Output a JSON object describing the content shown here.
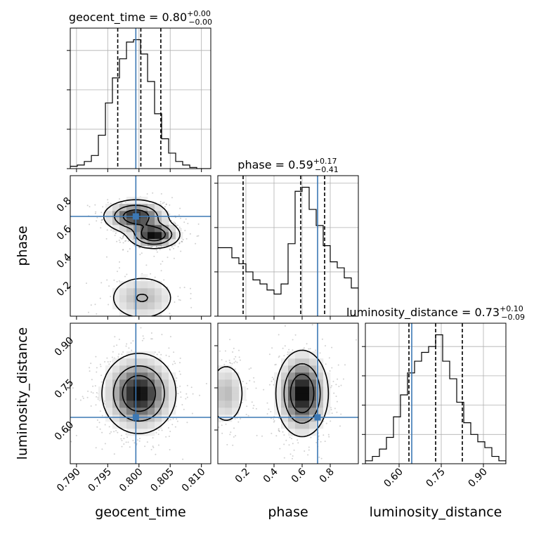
{
  "chart_data": {
    "type": "corner",
    "parameters": [
      "geocent_time",
      "phase",
      "luminosity_distance"
    ],
    "truth": {
      "geocent_time": 0.7995,
      "phase": 0.71,
      "luminosity_distance": 0.645
    },
    "truth_color": "#3c78b4",
    "grid": true,
    "marginals": [
      {
        "param": "geocent_time",
        "title_name": "geocent_time",
        "title_eq": " = ",
        "title_value": "0.80",
        "title_plus": "+0.00",
        "title_minus": "−0.00",
        "quantiles": [
          0.7966,
          0.8003,
          0.8035
        ],
        "xlim": [
          0.789,
          0.8115
        ],
        "bin_edges": [
          0.789,
          0.79013,
          0.79125,
          0.79238,
          0.7935,
          0.79463,
          0.79575,
          0.79688,
          0.798,
          0.79913,
          0.80025,
          0.80138,
          0.8025,
          0.80363,
          0.80475,
          0.80588,
          0.807,
          0.80813,
          0.80925,
          0.81038,
          0.8115
        ],
        "counts": [
          2,
          3,
          6,
          11,
          28,
          55,
          76,
          92,
          106,
          108,
          96,
          73,
          46,
          25,
          13,
          6,
          3,
          1,
          0,
          0
        ],
        "yticks": [
          0,
          33,
          66,
          99
        ]
      },
      {
        "param": "phase",
        "title_name": "phase",
        "title_eq": " = ",
        "title_value": "0.59",
        "title_plus": "+0.17",
        "title_minus": "−0.41",
        "quantiles": [
          0.18,
          0.59,
          0.76
        ],
        "xlim": [
          0.0,
          1.0
        ],
        "bin_edges": [
          0.0,
          0.05,
          0.1,
          0.15,
          0.2,
          0.25,
          0.3,
          0.35,
          0.4,
          0.45,
          0.5,
          0.55,
          0.6,
          0.65,
          0.7,
          0.75,
          0.8,
          0.85,
          0.9,
          0.95,
          1.0
        ],
        "counts": [
          34,
          34,
          29,
          26,
          22,
          18,
          16,
          13,
          11,
          16,
          36,
          62,
          64,
          53,
          45,
          35,
          27,
          24,
          19,
          14
        ],
        "yticks": [
          0,
          22,
          44,
          66
        ]
      },
      {
        "param": "luminosity_distance",
        "title_name": "luminosity_distance",
        "title_eq": " = ",
        "title_value": "0.73",
        "title_plus": "+0.10",
        "title_minus": "−0.09",
        "quantiles": [
          0.635,
          0.73,
          0.825
        ],
        "xlim": [
          0.48,
          0.98
        ],
        "bin_edges": [
          0.48,
          0.505,
          0.53,
          0.555,
          0.58,
          0.605,
          0.63,
          0.655,
          0.68,
          0.705,
          0.73,
          0.755,
          0.78,
          0.805,
          0.83,
          0.855,
          0.88,
          0.905,
          0.93,
          0.955,
          0.98
        ],
        "counts": [
          2,
          5,
          10,
          18,
          32,
          47,
          62,
          70,
          76,
          80,
          88,
          70,
          58,
          42,
          28,
          20,
          15,
          11,
          5,
          2
        ],
        "yticks": [
          0,
          20,
          40,
          60,
          80
        ]
      }
    ],
    "axes": {
      "geocent_time": {
        "lim": [
          0.789,
          0.8115
        ],
        "ticks": [
          0.79,
          0.795,
          0.8,
          0.805,
          0.81
        ],
        "tick_labels": [
          "0.790",
          "0.795",
          "0.800",
          "0.805",
          "0.810"
        ],
        "label": "geocent_time"
      },
      "phase": {
        "lim": [
          0.0,
          1.0
        ],
        "ticks": [
          0.2,
          0.4,
          0.6,
          0.8
        ],
        "tick_labels": [
          "0.2",
          "0.4",
          "0.6",
          "0.8"
        ],
        "label": "phase"
      },
      "luminosity_distance": {
        "lim": [
          0.48,
          0.98
        ],
        "ticks": [
          0.6,
          0.75,
          0.9
        ],
        "tick_labels": [
          "0.60",
          "0.75",
          "0.90"
        ],
        "label": "luminosity_distance"
      }
    },
    "joint_modes": [
      {
        "x": "geocent_time",
        "y": "phase",
        "modes": [
          {
            "cx": 0.7995,
            "cy": 0.71,
            "sx": 0.0024,
            "sy": 0.055,
            "w": 1.0
          },
          {
            "cx": 0.8024,
            "cy": 0.58,
            "sx": 0.0019,
            "sy": 0.045,
            "w": 1.1
          },
          {
            "cx": 0.8005,
            "cy": 0.13,
            "sx": 0.0028,
            "sy": 0.085,
            "w": 0.38
          }
        ]
      },
      {
        "x": "geocent_time",
        "y": "luminosity_distance",
        "modes": [
          {
            "cx": 0.8,
            "cy": 0.73,
            "sx": 0.0027,
            "sy": 0.065,
            "w": 1.0
          }
        ]
      },
      {
        "x": "phase",
        "y": "luminosity_distance",
        "modes": [
          {
            "cx": 0.6,
            "cy": 0.73,
            "sx": 0.085,
            "sy": 0.07,
            "w": 1.0
          },
          {
            "cx": 0.06,
            "cy": 0.73,
            "sx": 0.07,
            "sy": 0.06,
            "w": 0.32
          }
        ]
      }
    ]
  }
}
